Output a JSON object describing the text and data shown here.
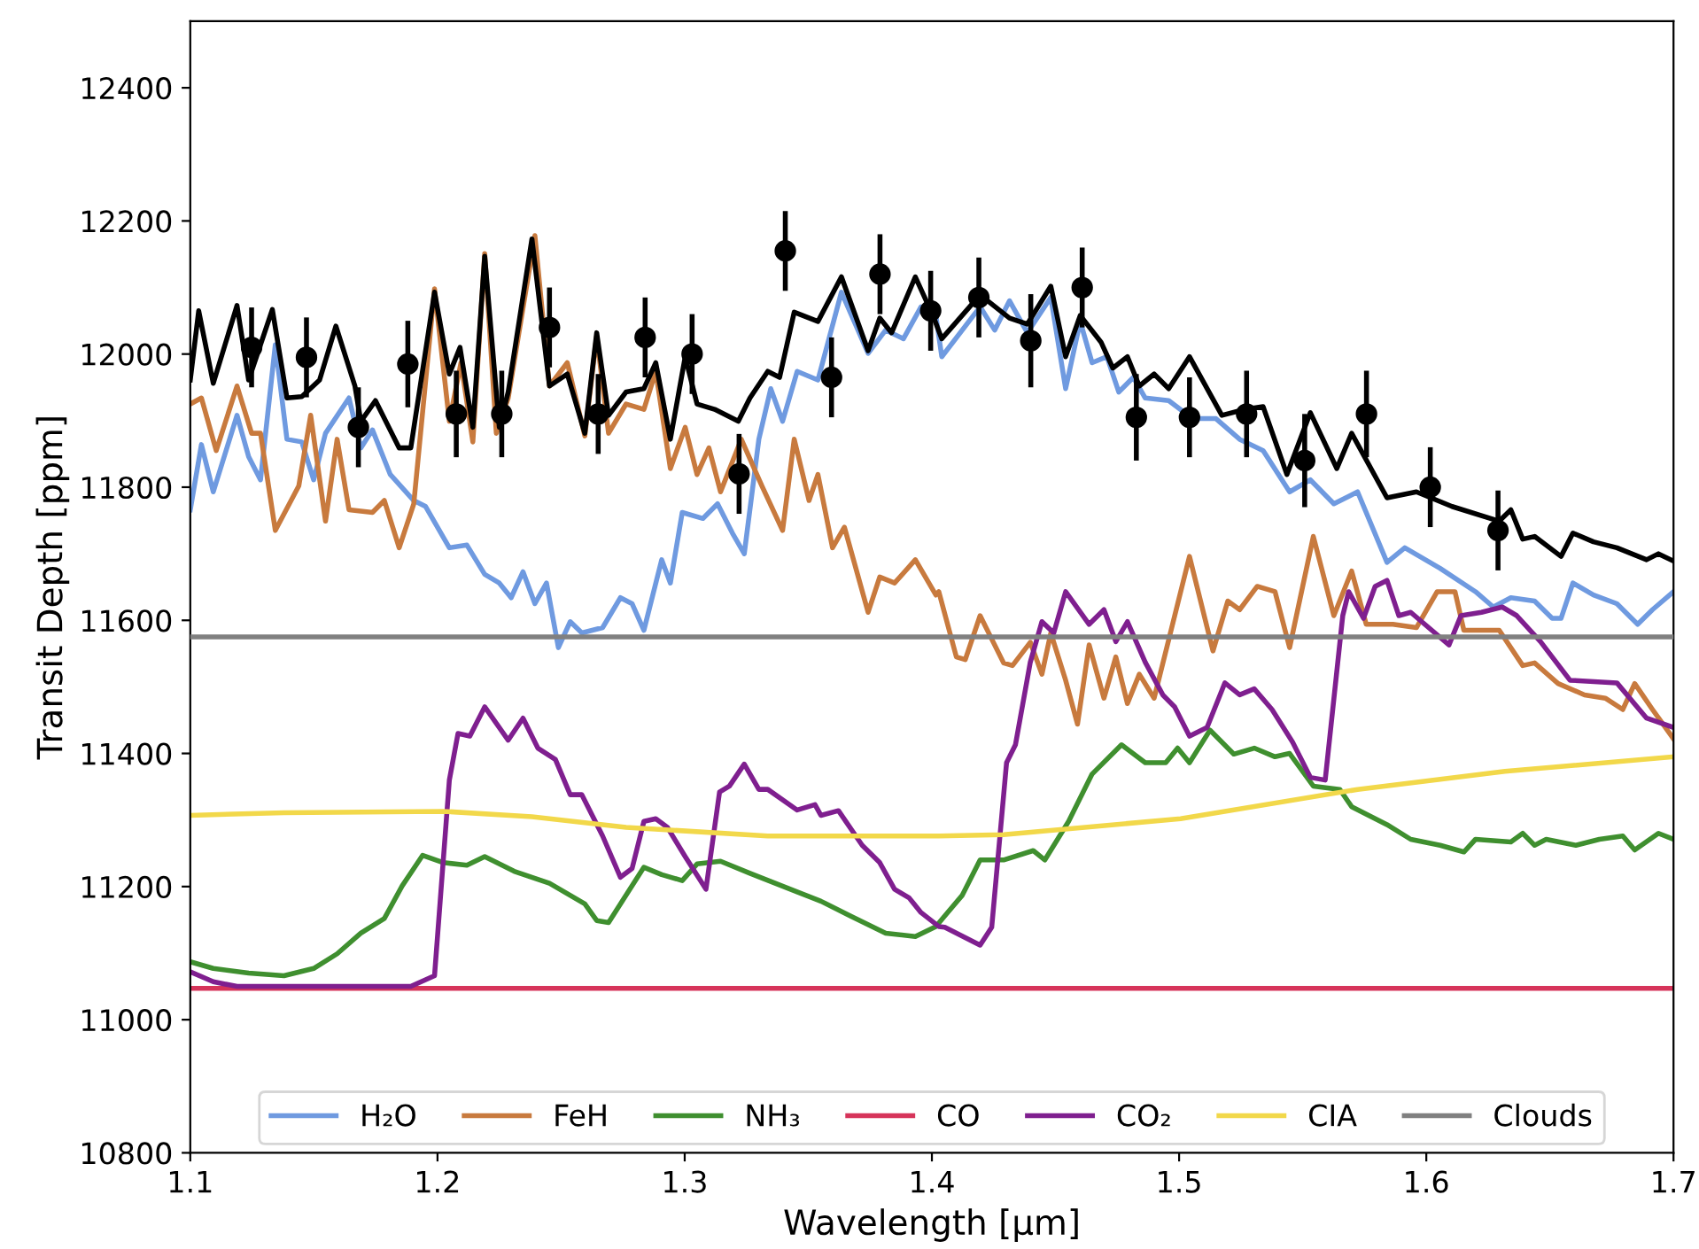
{
  "chart_data": {
    "type": "line",
    "xlabel": "Wavelength [μm]",
    "ylabel": "Transit Depth [ppm]",
    "xlim": [
      1.1,
      1.7
    ],
    "xticks": [
      1.1,
      1.2,
      1.3,
      1.4,
      1.5,
      1.6,
      1.7
    ],
    "ylim": [
      10800,
      12500
    ],
    "yticks": [
      10800,
      11000,
      11200,
      11400,
      11600,
      11800,
      12000,
      12200,
      12400
    ],
    "grid": false,
    "legend": "bottom",
    "marker": "none",
    "series": [
      {
        "name": "H₂O",
        "color": "#6f9ae0",
        "x": [
          1.1,
          1.1045,
          1.1093,
          1.1189,
          1.1236,
          1.1284,
          1.1344,
          1.1391,
          1.1451,
          1.1499,
          1.1547,
          1.1642,
          1.169,
          1.1737,
          1.1809,
          1.1904,
          1.1952,
          1.2048,
          1.2119,
          1.2191,
          1.225,
          1.2298,
          1.2346,
          1.2394,
          1.2441,
          1.2489,
          1.2537,
          1.2584,
          1.2668,
          1.274,
          1.2787,
          1.2835,
          1.2907,
          1.2942,
          1.299,
          1.3074,
          1.3133,
          1.3193,
          1.3241,
          1.33,
          1.3348,
          1.3396,
          1.3455,
          1.3539,
          1.3634,
          1.3742,
          1.3813,
          1.3885,
          1.3956,
          1.4016,
          1.404,
          1.4195,
          1.4254,
          1.4314,
          1.4386,
          1.4481,
          1.4541,
          1.46,
          1.4648,
          1.4708,
          1.4756,
          1.4815,
          1.4863,
          1.4958,
          1.5054,
          1.5149,
          1.5245,
          1.534,
          1.5447,
          1.5531,
          1.5626,
          1.5722,
          1.5841,
          1.5913,
          1.6056,
          1.6199,
          1.6271,
          1.6342,
          1.6438,
          1.6509,
          1.6545,
          1.6593,
          1.6676,
          1.6771,
          1.6855,
          1.6915,
          1.7
        ],
        "values": [
          11766,
          11864,
          11793,
          11908,
          11846,
          11811,
          12014,
          11872,
          11868,
          11811,
          11881,
          11934,
          11859,
          11886,
          11819,
          11780,
          11771,
          11709,
          11713,
          11669,
          11656,
          11634,
          11673,
          11625,
          11656,
          11559,
          11598,
          11581,
          11589,
          11634,
          11625,
          11585,
          11691,
          11656,
          11762,
          11753,
          11775,
          11731,
          11700,
          11872,
          11948,
          11899,
          11974,
          11961,
          12093,
          12001,
          12036,
          12023,
          12071,
          12058,
          11996,
          12071,
          12036,
          12080,
          12032,
          12085,
          11948,
          12049,
          11987,
          11996,
          11943,
          11965,
          11934,
          11930,
          11903,
          11903,
          11872,
          11855,
          11793,
          11811,
          11775,
          11793,
          11687,
          11709,
          11678,
          11643,
          11620,
          11634,
          11629,
          11603,
          11603,
          11656,
          11638,
          11625,
          11594,
          11616,
          11643
        ]
      },
      {
        "name": "FeH",
        "color": "#c87a3e",
        "x": [
          1.1,
          1.1045,
          1.1105,
          1.1189,
          1.1248,
          1.1284,
          1.1344,
          1.1439,
          1.1487,
          1.1547,
          1.1594,
          1.1642,
          1.1737,
          1.1785,
          1.1845,
          1.1904,
          1.1988,
          1.2048,
          1.2095,
          1.2143,
          1.2191,
          1.2238,
          1.2286,
          1.2394,
          1.2453,
          1.2525,
          1.2596,
          1.2644,
          1.2692,
          1.2763,
          1.2835,
          1.2883,
          1.2942,
          1.3002,
          1.305,
          1.3098,
          1.3145,
          1.3229,
          1.3312,
          1.3396,
          1.3443,
          1.3503,
          1.3539,
          1.3598,
          1.3646,
          1.3742,
          1.3789,
          1.3849,
          1.3933,
          1.4016,
          1.4028,
          1.4099,
          1.4135,
          1.4195,
          1.429,
          1.4326,
          1.4398,
          1.4445,
          1.4481,
          1.4541,
          1.4589,
          1.4636,
          1.4696,
          1.4744,
          1.4791,
          1.4839,
          1.4899,
          1.5042,
          1.5137,
          1.5197,
          1.5245,
          1.5316,
          1.5388,
          1.5447,
          1.5543,
          1.5626,
          1.5698,
          1.5757,
          1.5865,
          1.596,
          1.6044,
          1.6116,
          1.6152,
          1.6295,
          1.639,
          1.6438,
          1.6533,
          1.664,
          1.6724,
          1.6795,
          1.6843,
          1.6915,
          1.7
        ],
        "values": [
          11925,
          11934,
          11855,
          11952,
          11881,
          11881,
          11735,
          11802,
          11908,
          11749,
          11872,
          11766,
          11762,
          11780,
          11709,
          11775,
          12098,
          11899,
          11987,
          11868,
          12151,
          11881,
          11934,
          12178,
          11952,
          11987,
          11877,
          12027,
          11881,
          11925,
          11917,
          11974,
          11828,
          11890,
          11819,
          11859,
          11793,
          11872,
          11802,
          11735,
          11872,
          11780,
          11819,
          11709,
          11740,
          11612,
          11665,
          11656,
          11691,
          11638,
          11643,
          11545,
          11541,
          11607,
          11536,
          11532,
          11567,
          11519,
          11581,
          11510,
          11444,
          11563,
          11483,
          11545,
          11475,
          11519,
          11483,
          11696,
          11554,
          11629,
          11616,
          11651,
          11643,
          11559,
          11726,
          11607,
          11674,
          11594,
          11594,
          11589,
          11643,
          11643,
          11585,
          11585,
          11532,
          11536,
          11505,
          11488,
          11483,
          11466,
          11505,
          11466,
          11422
        ]
      },
      {
        "name": "NH₃",
        "color": "#3f8f2f",
        "x": [
          1.1,
          1.1093,
          1.1236,
          1.1379,
          1.1499,
          1.1594,
          1.169,
          1.1785,
          1.1857,
          1.194,
          1.2024,
          1.2119,
          1.2191,
          1.231,
          1.2453,
          1.2596,
          1.2644,
          1.2692,
          1.2835,
          1.2907,
          1.299,
          1.305,
          1.3145,
          1.3264,
          1.3455,
          1.3551,
          1.367,
          1.3813,
          1.3933,
          1.4016,
          1.4052,
          1.4123,
          1.4195,
          1.429,
          1.441,
          1.4457,
          1.4553,
          1.4648,
          1.4767,
          1.4863,
          1.4946,
          1.4994,
          1.5042,
          1.5125,
          1.5221,
          1.5304,
          1.5388,
          1.5447,
          1.5543,
          1.565,
          1.5698,
          1.5841,
          1.5937,
          1.6056,
          1.6152,
          1.6199,
          1.6342,
          1.639,
          1.6438,
          1.6485,
          1.6605,
          1.67,
          1.6795,
          1.6843,
          1.6939,
          1.7
        ],
        "values": [
          11087,
          11077,
          11070,
          11066,
          11077,
          11099,
          11130,
          11152,
          11201,
          11247,
          11236,
          11232,
          11245,
          11223,
          11205,
          11174,
          11149,
          11146,
          11229,
          11218,
          11209,
          11234,
          11238,
          11220,
          11192,
          11178,
          11156,
          11130,
          11125,
          11140,
          11156,
          11187,
          11240,
          11240,
          11254,
          11240,
          11298,
          11369,
          11413,
          11386,
          11386,
          11408,
          11386,
          11435,
          11399,
          11408,
          11395,
          11400,
          11351,
          11346,
          11320,
          11293,
          11271,
          11262,
          11252,
          11271,
          11267,
          11280,
          11262,
          11271,
          11262,
          11271,
          11276,
          11255,
          11280,
          11271
        ]
      },
      {
        "name": "CO",
        "color": "#d6345a",
        "x": [
          1.1,
          1.7
        ],
        "values": [
          11047,
          11047
        ]
      },
      {
        "name": "CO₂",
        "color": "#7f1f8f",
        "x": [
          1.1,
          1.1093,
          1.1189,
          1.1892,
          1.1988,
          1.2048,
          1.2083,
          1.2131,
          1.2191,
          1.2286,
          1.2346,
          1.2406,
          1.2477,
          1.2537,
          1.2584,
          1.2668,
          1.274,
          1.2787,
          1.2835,
          1.2883,
          1.293,
          1.3002,
          1.3086,
          1.3141,
          1.3181,
          1.3241,
          1.33,
          1.3336,
          1.3455,
          1.3527,
          1.3551,
          1.3622,
          1.3718,
          1.3789,
          1.3849,
          1.3908,
          1.3956,
          1.4028,
          1.4052,
          1.4195,
          1.4242,
          1.4302,
          1.4338,
          1.4398,
          1.4445,
          1.4493,
          1.4541,
          1.4636,
          1.4696,
          1.4744,
          1.4791,
          1.4863,
          1.4934,
          1.4982,
          1.5042,
          1.5113,
          1.5185,
          1.5245,
          1.5304,
          1.5376,
          1.5459,
          1.5531,
          1.5591,
          1.5662,
          1.5686,
          1.5746,
          1.5793,
          1.5841,
          1.5889,
          1.5937,
          1.6092,
          1.614,
          1.6223,
          1.6307,
          1.6366,
          1.6462,
          1.6581,
          1.6771,
          1.6891,
          1.7
        ],
        "values": [
          11072,
          11057,
          11050,
          11050,
          11066,
          11360,
          11430,
          11426,
          11470,
          11420,
          11453,
          11408,
          11391,
          11338,
          11338,
          11276,
          11214,
          11227,
          11298,
          11302,
          11289,
          11245,
          11196,
          11342,
          11351,
          11384,
          11346,
          11346,
          11315,
          11323,
          11307,
          11314,
          11262,
          11236,
          11196,
          11183,
          11161,
          11140,
          11139,
          11112,
          11139,
          11386,
          11413,
          11537,
          11598,
          11581,
          11643,
          11594,
          11616,
          11568,
          11598,
          11537,
          11488,
          11470,
          11426,
          11439,
          11506,
          11488,
          11497,
          11466,
          11417,
          11364,
          11360,
          11607,
          11643,
          11603,
          11651,
          11660,
          11607,
          11612,
          11563,
          11607,
          11612,
          11620,
          11607,
          11568,
          11510,
          11506,
          11453,
          11439
        ]
      },
      {
        "name": "CIA",
        "color": "#f2d84a",
        "x": [
          1.1,
          1.1379,
          1.2024,
          1.2382,
          1.2763,
          1.3336,
          1.4028,
          1.429,
          1.5006,
          1.5722,
          1.6318,
          1.7
        ],
        "values": [
          11307,
          11311,
          11313,
          11305,
          11289,
          11276,
          11276,
          11278,
          11302,
          11346,
          11373,
          11395
        ]
      },
      {
        "name": "Clouds",
        "color": "#808080",
        "x": [
          1.1,
          1.7
        ],
        "values": [
          11575,
          11575
        ]
      },
      {
        "color": "#000000",
        "x": [
          1.1,
          1.1034,
          1.1093,
          1.1189,
          1.1236,
          1.1332,
          1.1391,
          1.1451,
          1.1523,
          1.1589,
          1.1666,
          1.169,
          1.1749,
          1.1845,
          1.1892,
          1.1988,
          1.2048,
          1.2091,
          1.2143,
          1.2191,
          1.225,
          1.2286,
          1.2382,
          1.2453,
          1.2525,
          1.2596,
          1.2644,
          1.2692,
          1.2763,
          1.2835,
          1.2883,
          1.2942,
          1.3002,
          1.305,
          1.3121,
          1.3217,
          1.3264,
          1.3336,
          1.3384,
          1.3443,
          1.3539,
          1.3634,
          1.3742,
          1.3789,
          1.3837,
          1.3933,
          1.4004,
          1.404,
          1.4195,
          1.4314,
          1.4386,
          1.4481,
          1.4541,
          1.46,
          1.4684,
          1.4732,
          1.4791,
          1.4839,
          1.4899,
          1.4958,
          1.5042,
          1.5173,
          1.5268,
          1.534,
          1.5436,
          1.5531,
          1.5638,
          1.5698,
          1.5841,
          1.596,
          1.6104,
          1.6295,
          1.6342,
          1.639,
          1.6438,
          1.6545,
          1.6593,
          1.6676,
          1.6771,
          1.6891,
          1.6939,
          1.7
        ],
        "values": [
          11961,
          12065,
          11956,
          12073,
          11961,
          12067,
          11934,
          11936,
          11961,
          12042,
          11952,
          11899,
          11930,
          11859,
          11859,
          12093,
          11970,
          12010,
          11890,
          12147,
          11890,
          11943,
          12173,
          11952,
          11970,
          11881,
          12032,
          11908,
          11943,
          11948,
          11987,
          11872,
          11996,
          11925,
          11917,
          11899,
          11934,
          11974,
          11965,
          12063,
          12049,
          12116,
          12005,
          12054,
          12032,
          12116,
          12058,
          12023,
          12089,
          12054,
          12045,
          12102,
          11996,
          12058,
          12018,
          11979,
          11996,
          11952,
          11970,
          11948,
          11996,
          11908,
          11917,
          11921,
          11819,
          11912,
          11828,
          11881,
          11784,
          11793,
          11771,
          11749,
          11766,
          11722,
          11726,
          11696,
          11731,
          11718,
          11709,
          11691,
          11700,
          11689
        ]
      },
      {
        "type": "scatter",
        "color": "#000000",
        "marker": "circle",
        "x": [
          1.1248,
          1.147,
          1.168,
          1.188,
          1.2076,
          1.226,
          1.2453,
          1.265,
          1.284,
          1.303,
          1.322,
          1.3407,
          1.3594,
          1.379,
          1.3995,
          1.419,
          1.44,
          1.4608,
          1.4827,
          1.5042,
          1.5273,
          1.5508,
          1.5758,
          1.6016,
          1.629
        ],
        "values": [
          12010,
          11995,
          11890,
          11985,
          11910,
          11910,
          12040,
          11910,
          12025,
          12000,
          11820,
          12155,
          11965,
          12120,
          12065,
          12085,
          12020,
          12100,
          11905,
          11905,
          11910,
          11840,
          11910,
          11800,
          11735
        ],
        "errors": [
          60,
          60,
          60,
          65,
          65,
          65,
          60,
          60,
          60,
          60,
          60,
          60,
          60,
          60,
          60,
          60,
          70,
          60,
          65,
          60,
          65,
          70,
          65,
          60,
          60
        ]
      }
    ]
  }
}
